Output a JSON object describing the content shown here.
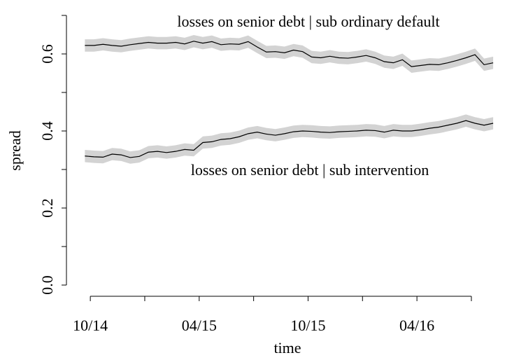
{
  "chart_data": {
    "type": "line",
    "x_label": "time",
    "y_label": "spread",
    "x": [
      -0.3,
      0.2,
      0.7,
      1.2,
      1.7,
      2.2,
      2.7,
      3.2,
      3.7,
      4.2,
      4.7,
      5.2,
      5.7,
      6.2,
      6.7,
      7.2,
      7.7,
      8.2,
      8.7,
      9.2,
      9.7,
      10.2,
      10.7,
      11.2,
      11.7,
      12.2,
      12.7,
      13.2,
      13.7,
      14.2,
      14.7,
      15.2,
      15.7,
      16.2,
      16.7,
      17.2,
      17.7,
      18.2,
      18.7,
      19.2,
      19.7,
      20.2,
      20.7,
      21.2,
      21.7,
      22.2
    ],
    "series": [
      {
        "name": "losses on senior debt | sub ordinary default",
        "color": "#000000",
        "band_color": "#d3d3d3",
        "error": 0.016,
        "values": [
          0.622,
          0.622,
          0.625,
          0.622,
          0.62,
          0.624,
          0.627,
          0.63,
          0.628,
          0.628,
          0.63,
          0.626,
          0.633,
          0.628,
          0.632,
          0.624,
          0.626,
          0.625,
          0.632,
          0.618,
          0.605,
          0.606,
          0.603,
          0.61,
          0.606,
          0.592,
          0.59,
          0.594,
          0.59,
          0.589,
          0.592,
          0.596,
          0.59,
          0.58,
          0.577,
          0.585,
          0.567,
          0.57,
          0.573,
          0.572,
          0.577,
          0.583,
          0.59,
          0.598,
          0.572,
          0.577
        ]
      },
      {
        "name": "losses on senior debt | sub intervention",
        "color": "#000000",
        "band_color": "#d3d3d3",
        "error": 0.016,
        "values": [
          0.335,
          0.333,
          0.332,
          0.34,
          0.338,
          0.331,
          0.334,
          0.345,
          0.347,
          0.344,
          0.347,
          0.352,
          0.35,
          0.37,
          0.372,
          0.378,
          0.38,
          0.385,
          0.393,
          0.397,
          0.392,
          0.389,
          0.393,
          0.398,
          0.4,
          0.399,
          0.397,
          0.396,
          0.398,
          0.399,
          0.4,
          0.402,
          0.401,
          0.397,
          0.402,
          0.4,
          0.4,
          0.403,
          0.407,
          0.41,
          0.415,
          0.42,
          0.427,
          0.42,
          0.415,
          0.42
        ]
      }
    ],
    "xlim": [
      -1.2,
      23.2
    ],
    "xticks": [
      {
        "value": 0,
        "label": "10/14"
      },
      {
        "value": 6,
        "label": "04/15"
      },
      {
        "value": 12,
        "label": "10/15"
      },
      {
        "value": 18,
        "label": "04/16"
      }
    ],
    "xminorticks": [
      3,
      9,
      15,
      21
    ],
    "ylim": [
      -0.03,
      0.74
    ],
    "yticks": [
      {
        "value": 0,
        "label": "0.0"
      },
      {
        "value": 0.2,
        "label": "0.2"
      },
      {
        "value": 0.4,
        "label": "0.4"
      },
      {
        "value": 0.6,
        "label": "0.6"
      }
    ],
    "yminorticks": [
      0.1,
      0.3,
      0.5,
      0.7
    ],
    "grid": false
  }
}
